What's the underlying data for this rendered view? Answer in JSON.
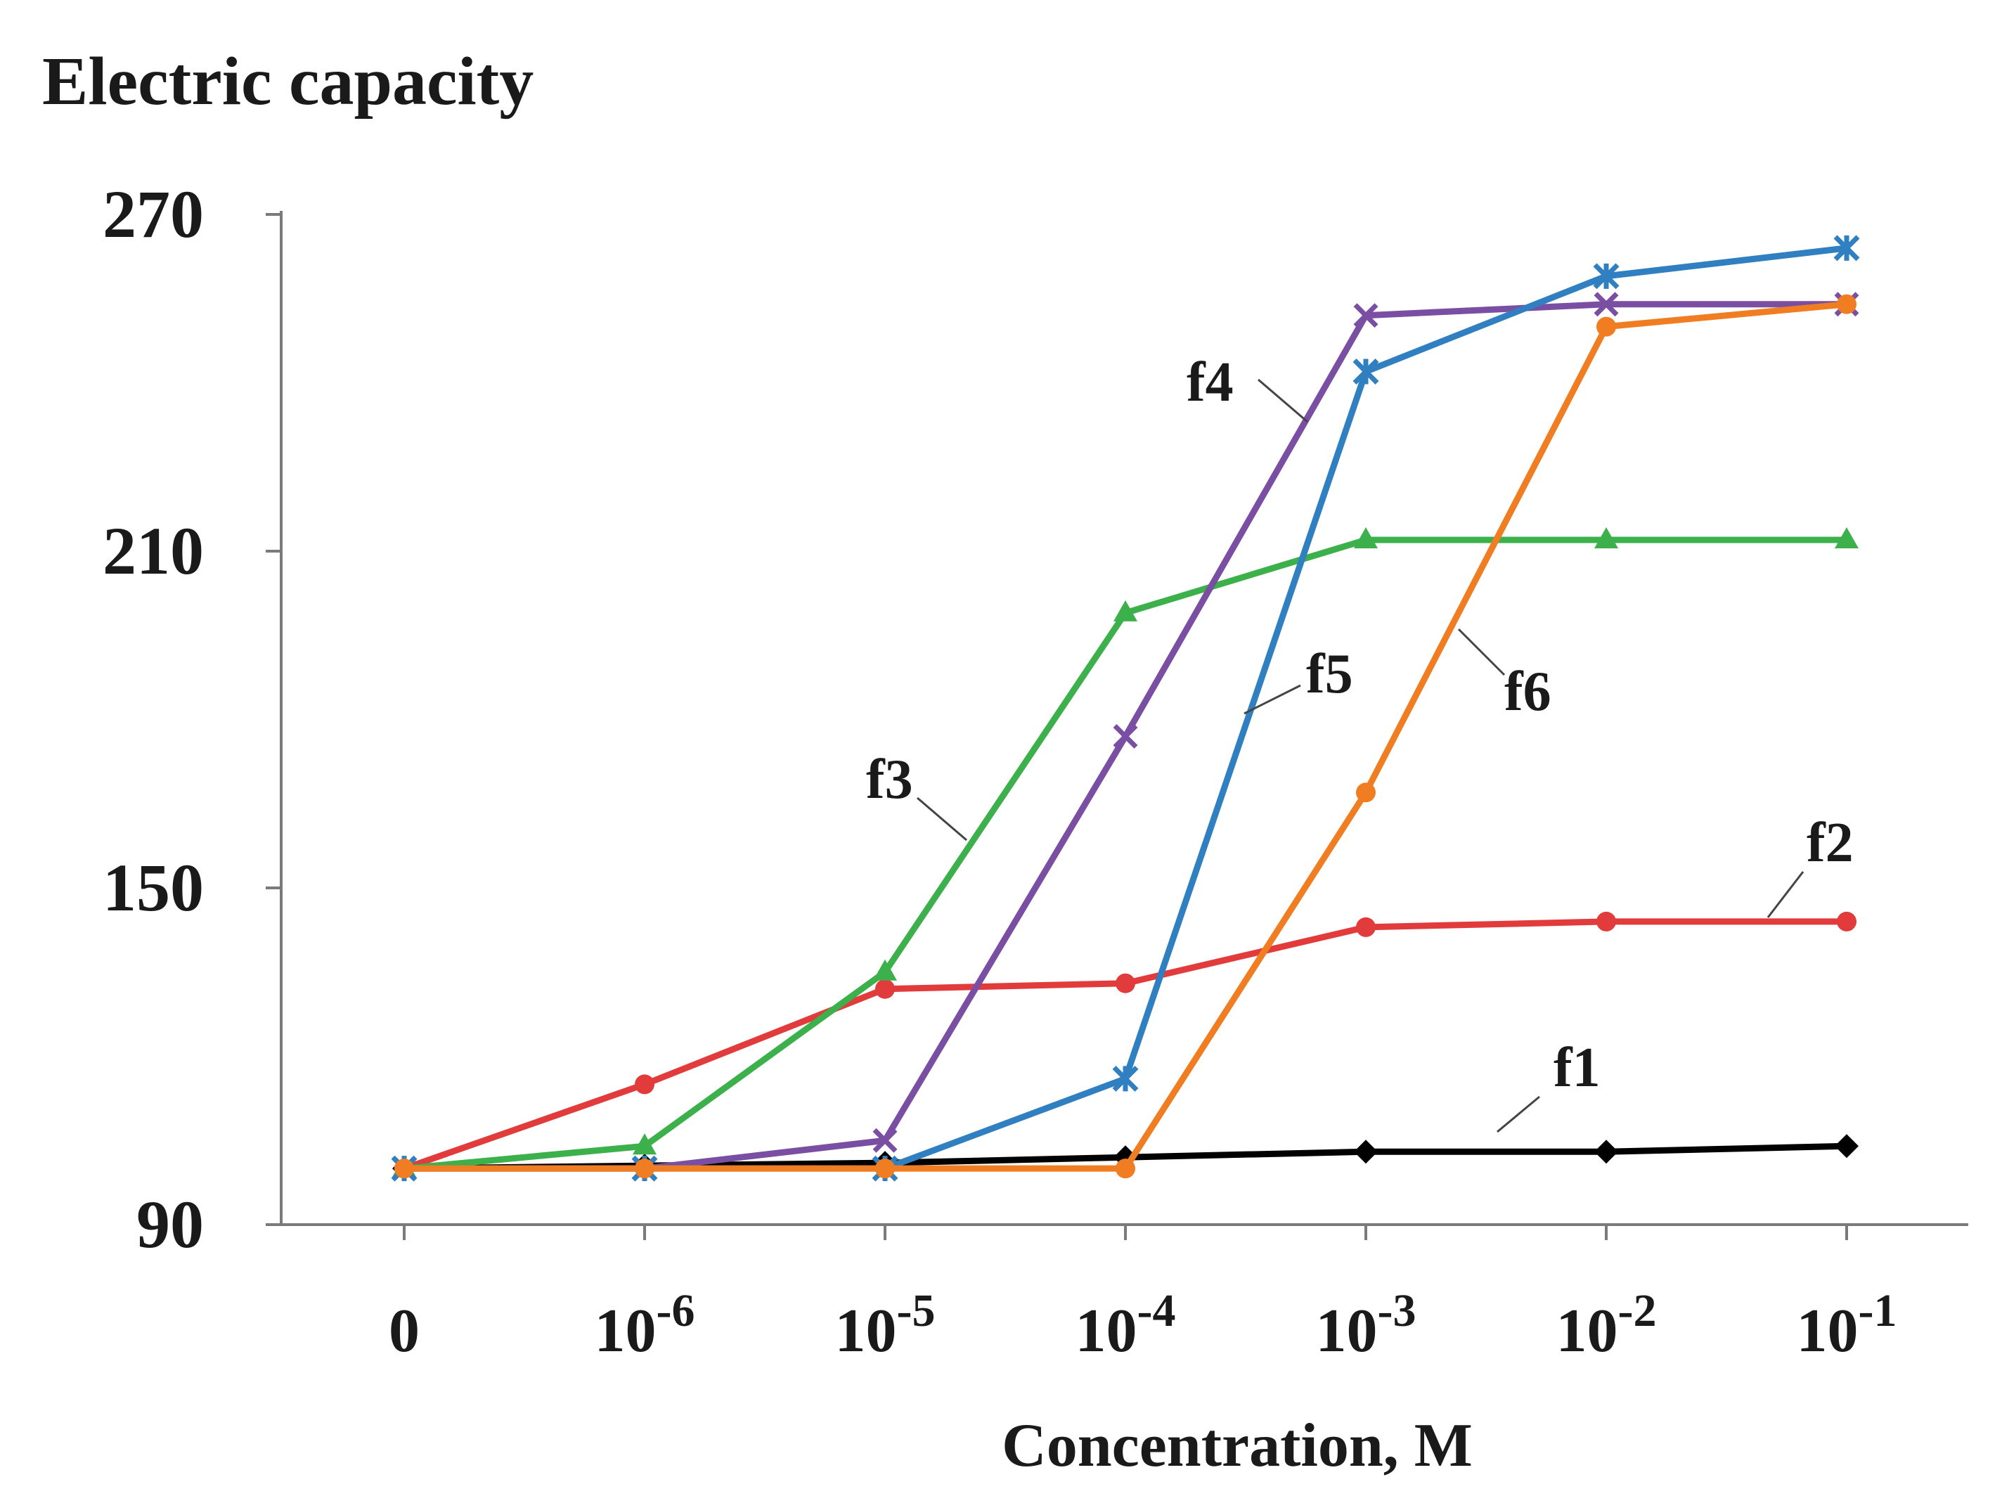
{
  "chart_data": {
    "type": "line",
    "title": "Electric capacity",
    "xlabel": "Concentration,  M",
    "ylabel": "Electric capacity",
    "ylim": [
      90,
      270
    ],
    "yticks": [
      "90",
      "150",
      "210",
      "270"
    ],
    "categories": [
      {
        "base": "0",
        "exp": ""
      },
      {
        "base": "10",
        "exp": "-6"
      },
      {
        "base": "10",
        "exp": "-5"
      },
      {
        "base": "10",
        "exp": "-4"
      },
      {
        "base": "10",
        "exp": "-3"
      },
      {
        "base": "10",
        "exp": "-2"
      },
      {
        "base": "10",
        "exp": "-1"
      }
    ],
    "series": [
      {
        "name": "f1",
        "color": "#000000",
        "marker": "diamond",
        "values": [
          100,
          100.5,
          101,
          102,
          103,
          103,
          104
        ]
      },
      {
        "name": "f2",
        "color": "#e23b3b",
        "marker": "circle",
        "values": [
          100,
          115,
          132,
          133,
          143,
          144,
          144
        ]
      },
      {
        "name": "f3",
        "color": "#3cb04a",
        "marker": "triangle",
        "values": [
          100,
          104,
          135,
          199,
          212,
          212,
          212
        ]
      },
      {
        "name": "f4",
        "color": "#7a4fa3",
        "marker": "x",
        "values": [
          100,
          100,
          105,
          177,
          252,
          254,
          254
        ]
      },
      {
        "name": "f5",
        "color": "#2f7fc1",
        "marker": "star",
        "values": [
          100,
          100,
          100,
          116,
          242,
          259,
          264
        ]
      },
      {
        "name": "f6",
        "color": "#f07d21",
        "marker": "circle",
        "values": [
          100,
          100,
          100,
          100,
          167,
          250,
          254
        ]
      }
    ]
  }
}
